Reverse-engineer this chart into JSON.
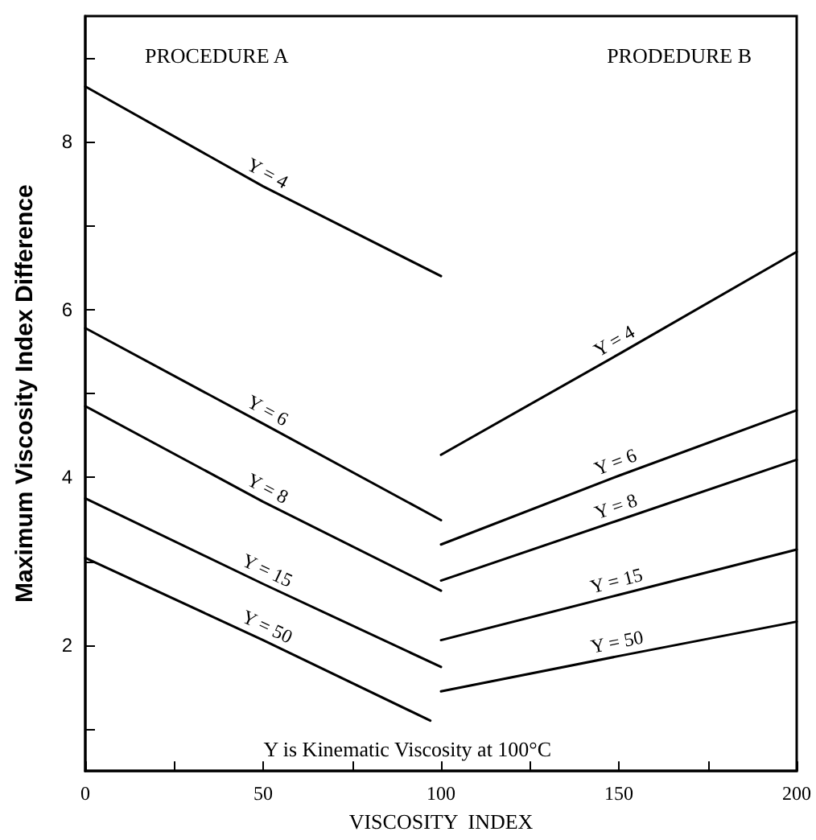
{
  "chart_data": {
    "type": "line",
    "xlabel": "VISCOSITY  INDEX",
    "ylabel": "Maximum Viscosity Index Difference",
    "annotations": [
      "PROCEDURE A",
      "PRODEDURE B",
      "Y is Kinematic Viscosity at 100°C"
    ],
    "xlim": [
      0,
      200
    ],
    "xticks": [
      0,
      {
        "value": 25,
        "label": null
      },
      50,
      {
        "value": 75,
        "label": null
      },
      100,
      {
        "value": 125,
        "label": null
      },
      150,
      {
        "value": 175,
        "label": null
      },
      200
    ],
    "ylim": [
      0.5,
      9.5
    ],
    "yticks": [
      {
        "value": 1,
        "label": null
      },
      2,
      {
        "value": 3,
        "label": null
      },
      4,
      {
        "value": 5,
        "label": null
      },
      6,
      {
        "value": 7,
        "label": null
      },
      8,
      {
        "value": 9,
        "label": null
      }
    ],
    "grid": false,
    "legend": false,
    "marker": "none",
    "line_style": "solid",
    "series": [
      {
        "name": "Y = 4",
        "color": "#000000",
        "x": [
          0,
          50,
          100
        ],
        "values": [
          8.66,
          7.47,
          6.4
        ]
      },
      {
        "name": "Y = 6",
        "color": "#000000",
        "x": [
          0,
          50,
          100
        ],
        "values": [
          5.78,
          4.64,
          3.49
        ]
      },
      {
        "name": "Y = 8",
        "color": "#000000",
        "x": [
          0,
          50,
          100
        ],
        "values": [
          4.85,
          3.71,
          2.65
        ]
      },
      {
        "name": "Y = 15",
        "color": "#000000",
        "x": [
          0,
          50,
          100
        ],
        "values": [
          3.75,
          2.73,
          1.74
        ]
      },
      {
        "name": "Y = 50",
        "color": "#000000",
        "x": [
          0,
          50,
          97
        ],
        "values": [
          3.04,
          2.06,
          1.1
        ]
      },
      {
        "name": "Y = 4",
        "color": "#000000",
        "x": [
          100,
          150,
          200
        ],
        "values": [
          4.27,
          5.47,
          6.69
        ]
      },
      {
        "name": "Y = 6",
        "color": "#000000",
        "x": [
          100,
          150,
          200
        ],
        "values": [
          3.2,
          4.02,
          4.8
        ]
      },
      {
        "name": "Y = 8",
        "color": "#000000",
        "x": [
          100,
          150,
          200
        ],
        "values": [
          2.77,
          3.49,
          4.21
        ]
      },
      {
        "name": "Y = 15",
        "color": "#000000",
        "x": [
          100,
          150,
          200
        ],
        "values": [
          2.06,
          2.6,
          3.14
        ]
      },
      {
        "name": "Y = 50",
        "color": "#000000",
        "x": [
          100,
          150,
          200
        ],
        "values": [
          1.45,
          1.87,
          2.28
        ]
      }
    ]
  }
}
